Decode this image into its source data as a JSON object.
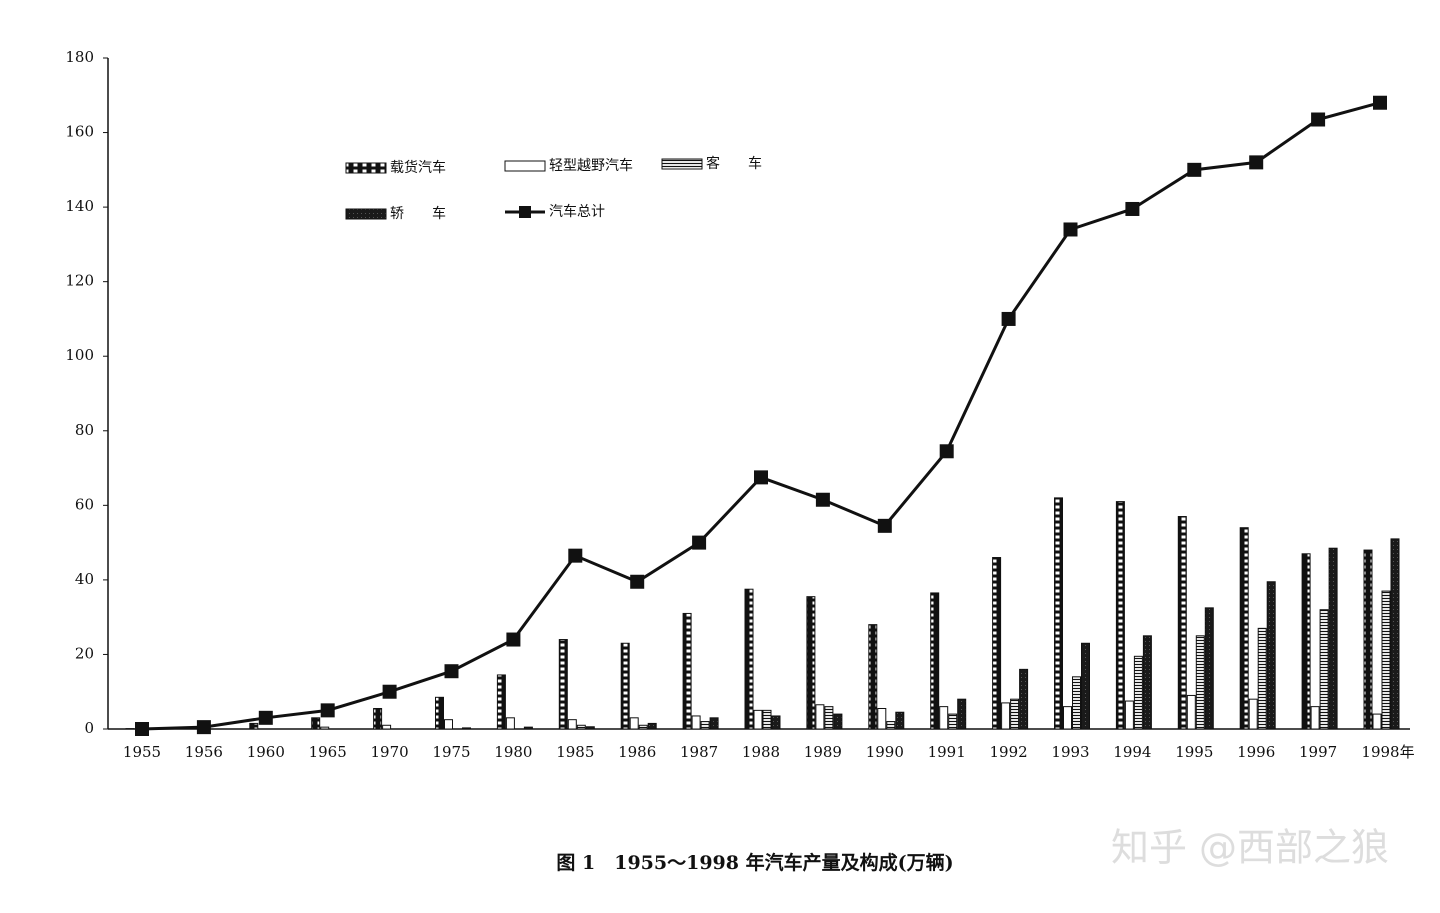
{
  "chart_data": {
    "type": "bar",
    "title": "图 1　1955～1998 年汽车产量及构成(万辆)",
    "watermark": "知乎 @西部之狼",
    "categories": [
      "1955",
      "1956",
      "1960",
      "1965",
      "1970",
      "1975",
      "1980",
      "1985",
      "1986",
      "1987",
      "1988",
      "1989",
      "1990",
      "1991",
      "1992",
      "1993",
      "1994",
      "1995",
      "1996",
      "1997",
      "1998年"
    ],
    "series": [
      {
        "name": "载货汽车",
        "color": "#111111",
        "pattern": "ladder",
        "values": [
          0.1,
          0.2,
          1.5,
          3,
          5.5,
          8.5,
          14.5,
          24,
          23,
          31,
          37.5,
          35.5,
          28,
          36.5,
          46,
          62,
          61,
          57,
          54,
          47,
          48
        ]
      },
      {
        "name": "轻型越野汽车",
        "color": "#111111",
        "pattern": "none",
        "values": [
          0,
          0,
          0,
          0.5,
          1,
          2.5,
          3,
          2.5,
          3,
          3.5,
          5,
          6.5,
          5.5,
          6,
          7,
          6,
          7.5,
          9,
          8,
          6,
          4
        ]
      },
      {
        "name": "客　　车",
        "color": "#111111",
        "pattern": "hlines",
        "values": [
          0,
          0,
          0,
          0,
          0,
          0,
          0,
          1,
          1,
          2,
          5,
          6,
          2,
          4,
          8,
          14,
          19.5,
          25,
          27,
          32,
          37
        ]
      },
      {
        "name": "轿　　车",
        "color": "#111111",
        "pattern": "dark",
        "values": [
          0,
          0,
          0,
          0,
          0,
          0.3,
          0.5,
          0.6,
          1.5,
          3,
          3.5,
          4,
          4.5,
          8,
          16,
          23,
          25,
          32.5,
          39.5,
          48.5,
          51
        ]
      },
      {
        "name": "汽车总计",
        "color": "#111111",
        "type": "line",
        "values": [
          0,
          0.5,
          3,
          5,
          10,
          15.5,
          24,
          46.5,
          39.5,
          50,
          67.5,
          61.5,
          54.5,
          74.5,
          110,
          134,
          139.5,
          150,
          152,
          163.5,
          168
        ]
      }
    ],
    "ylim": [
      0,
      180
    ],
    "yticks": [
      0,
      20,
      40,
      60,
      80,
      100,
      120,
      140,
      160,
      180
    ]
  }
}
